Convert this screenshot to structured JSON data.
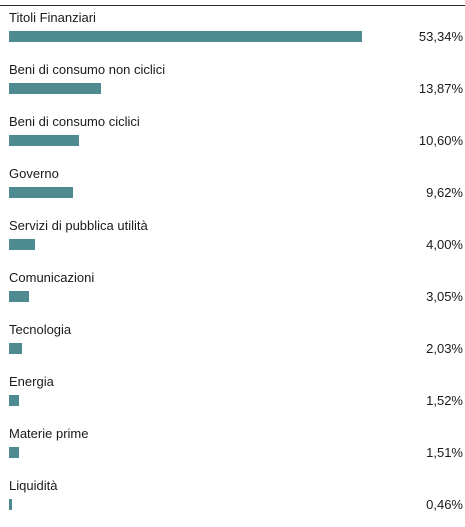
{
  "colors": {
    "bar": "#4d8b91",
    "text": "#1a1a1a",
    "rule": "#2b2b2b"
  },
  "chart_data": {
    "type": "bar",
    "orientation": "horizontal",
    "categories": [
      "Titoli Finanziari",
      "Beni di consumo non ciclici",
      "Beni di consumo ciclici",
      "Governo",
      "Servizi di pubblica utilità",
      "Comunicazioni",
      "Tecnologia",
      "Energia",
      "Materie prime",
      "Liquidità"
    ],
    "values": [
      53.34,
      13.87,
      10.6,
      9.62,
      4.0,
      3.05,
      2.03,
      1.52,
      1.51,
      0.46
    ],
    "value_labels": [
      "53,34%",
      "13,87%",
      "10,60%",
      "9,62%",
      "4,00%",
      "3,05%",
      "2,03%",
      "1,52%",
      "1,51%",
      "0,46%"
    ],
    "xlim": [
      0,
      53.34
    ],
    "grid": false,
    "legend": "none"
  }
}
